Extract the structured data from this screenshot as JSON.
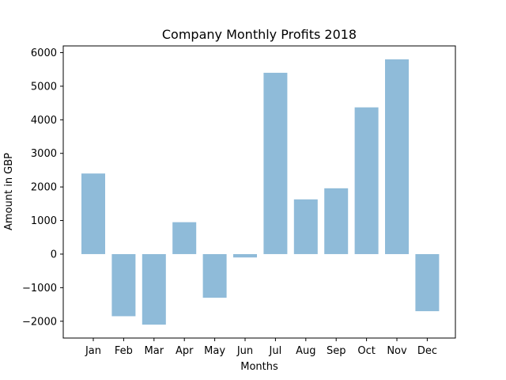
{
  "chart_data": {
    "type": "bar",
    "title": "Company Monthly Profits 2018",
    "xlabel": "Months",
    "ylabel": "Amount in GBP",
    "categories": [
      "Jan",
      "Feb",
      "Mar",
      "Apr",
      "May",
      "Jun",
      "Jul",
      "Aug",
      "Sep",
      "Oct",
      "Nov",
      "Dec"
    ],
    "values": [
      2400,
      -1850,
      -2100,
      950,
      -1300,
      -100,
      5400,
      1630,
      1960,
      4370,
      5800,
      -1700
    ],
    "ylim": [
      -2500,
      6200
    ],
    "yticks": [
      6000,
      5000,
      4000,
      3000,
      2000,
      1000,
      0,
      -1000,
      -2000
    ],
    "ytick_labels": [
      "6000",
      "5000",
      "4000",
      "3000",
      "2000",
      "1000",
      "0",
      "−1000",
      "−2000"
    ],
    "grid": false,
    "bar_color": "#8fbbd9"
  }
}
